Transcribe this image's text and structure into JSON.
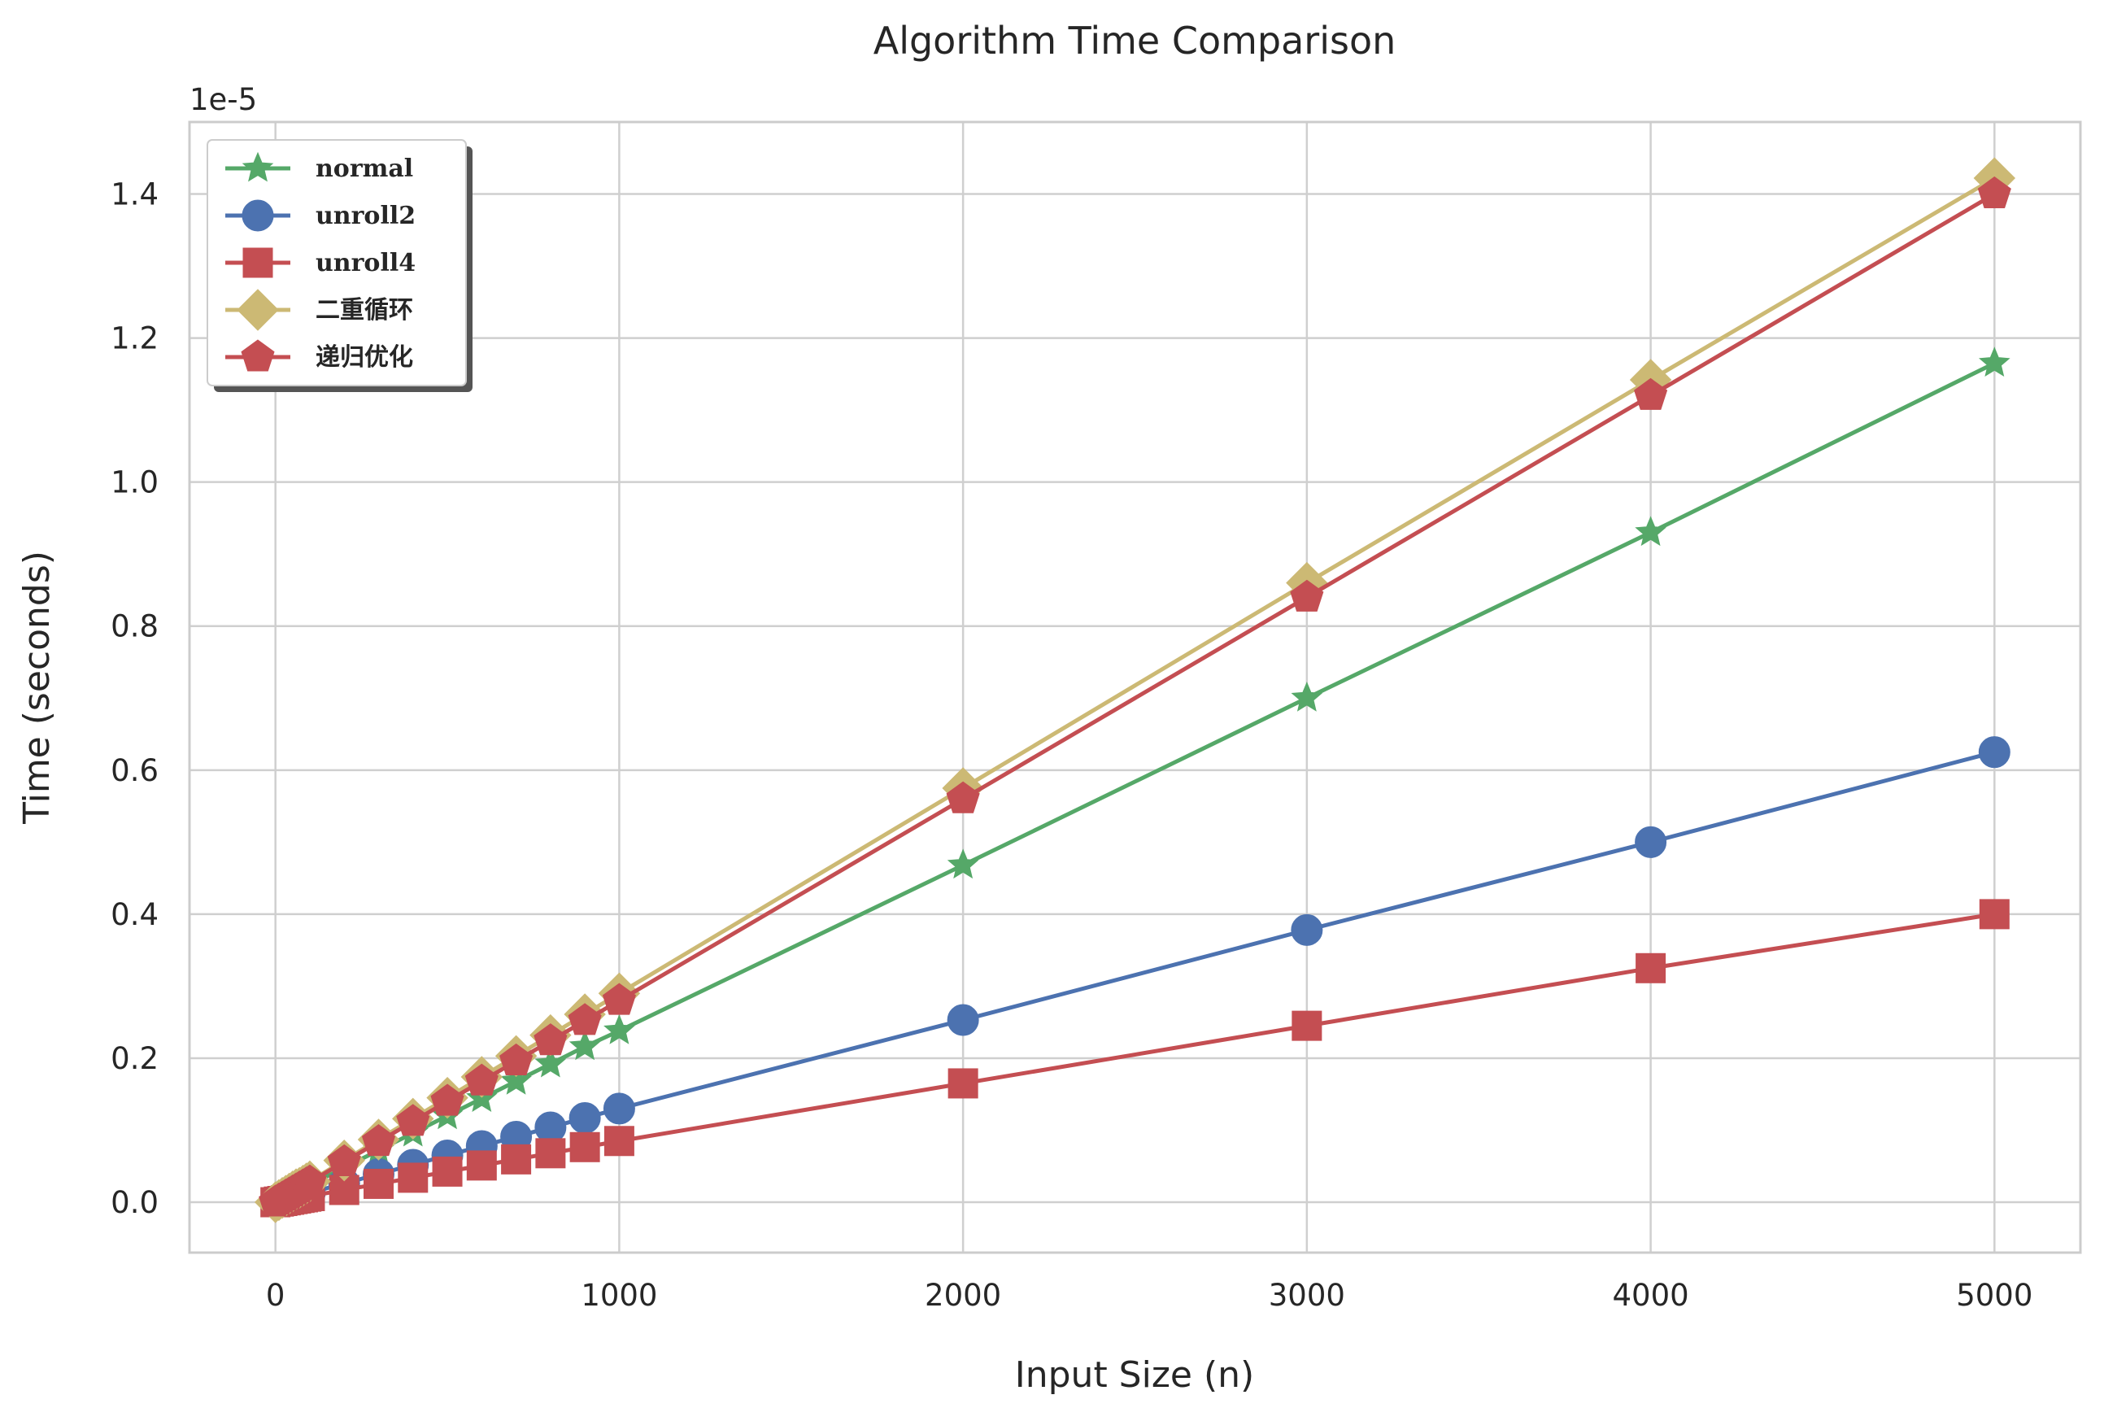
{
  "chart_data": {
    "type": "line",
    "title": "Algorithm Time Comparison",
    "xlabel": "Input Size (n)",
    "ylabel": "Time (seconds)",
    "y_offset_label": "1e-5",
    "y_scale_multiplier": 1e-05,
    "xlim": [
      -250,
      5250
    ],
    "ylim": [
      -0.07,
      1.5
    ],
    "xticks": [
      0,
      1000,
      2000,
      3000,
      4000,
      5000
    ],
    "xtick_labels": [
      "0",
      "1000",
      "2000",
      "3000",
      "4000",
      "5000"
    ],
    "yticks": [
      0.0,
      0.2,
      0.4,
      0.6,
      0.8,
      1.0,
      1.2,
      1.4
    ],
    "ytick_labels": [
      "0.0",
      "0.2",
      "0.4",
      "0.6",
      "0.8",
      "1.0",
      "1.2",
      "1.4"
    ],
    "grid": true,
    "legend_position": "top-left",
    "x": [
      0,
      10,
      20,
      30,
      40,
      50,
      60,
      70,
      80,
      90,
      100,
      200,
      300,
      400,
      500,
      600,
      700,
      800,
      900,
      1000,
      2000,
      3000,
      4000,
      5000
    ],
    "series": [
      {
        "name": "normal",
        "color": "#55a868",
        "marker": "star",
        "values": [
          0.0,
          0.003,
          0.005,
          0.008,
          0.01,
          0.012,
          0.014,
          0.017,
          0.019,
          0.021,
          0.024,
          0.048,
          0.072,
          0.096,
          0.12,
          0.144,
          0.168,
          0.192,
          0.216,
          0.238,
          0.468,
          0.7,
          0.93,
          1.165
        ]
      },
      {
        "name": "unroll2",
        "color": "#4c72b0",
        "marker": "circle",
        "values": [
          0.0,
          0.0013,
          0.0026,
          0.0039,
          0.0052,
          0.0065,
          0.0078,
          0.0091,
          0.0104,
          0.0117,
          0.013,
          0.026,
          0.039,
          0.052,
          0.065,
          0.078,
          0.091,
          0.104,
          0.117,
          0.13,
          0.253,
          0.378,
          0.5,
          0.625
        ]
      },
      {
        "name": "unroll4",
        "color": "#c44e52",
        "marker": "square",
        "values": [
          0.0,
          0.0009,
          0.0017,
          0.0026,
          0.0034,
          0.0043,
          0.0051,
          0.006,
          0.0068,
          0.0077,
          0.0085,
          0.017,
          0.0255,
          0.034,
          0.0425,
          0.051,
          0.0595,
          0.068,
          0.0765,
          0.085,
          0.165,
          0.245,
          0.325,
          0.4
        ]
      },
      {
        "name": "二重循环",
        "color": "#ccb974",
        "marker": "diamond",
        "values": [
          0.0,
          0.003,
          0.006,
          0.009,
          0.012,
          0.015,
          0.018,
          0.02,
          0.023,
          0.026,
          0.029,
          0.058,
          0.087,
          0.116,
          0.145,
          0.174,
          0.203,
          0.232,
          0.261,
          0.29,
          0.575,
          0.86,
          1.142,
          1.422
        ]
      },
      {
        "name": "递归优化",
        "color": "#c44e52",
        "marker": "pentagon",
        "values": [
          0.0,
          0.0028,
          0.0056,
          0.0084,
          0.0112,
          0.014,
          0.0168,
          0.0196,
          0.0224,
          0.0252,
          0.028,
          0.056,
          0.084,
          0.112,
          0.14,
          0.168,
          0.196,
          0.224,
          0.252,
          0.28,
          0.56,
          0.84,
          1.12,
          1.4
        ]
      }
    ]
  }
}
